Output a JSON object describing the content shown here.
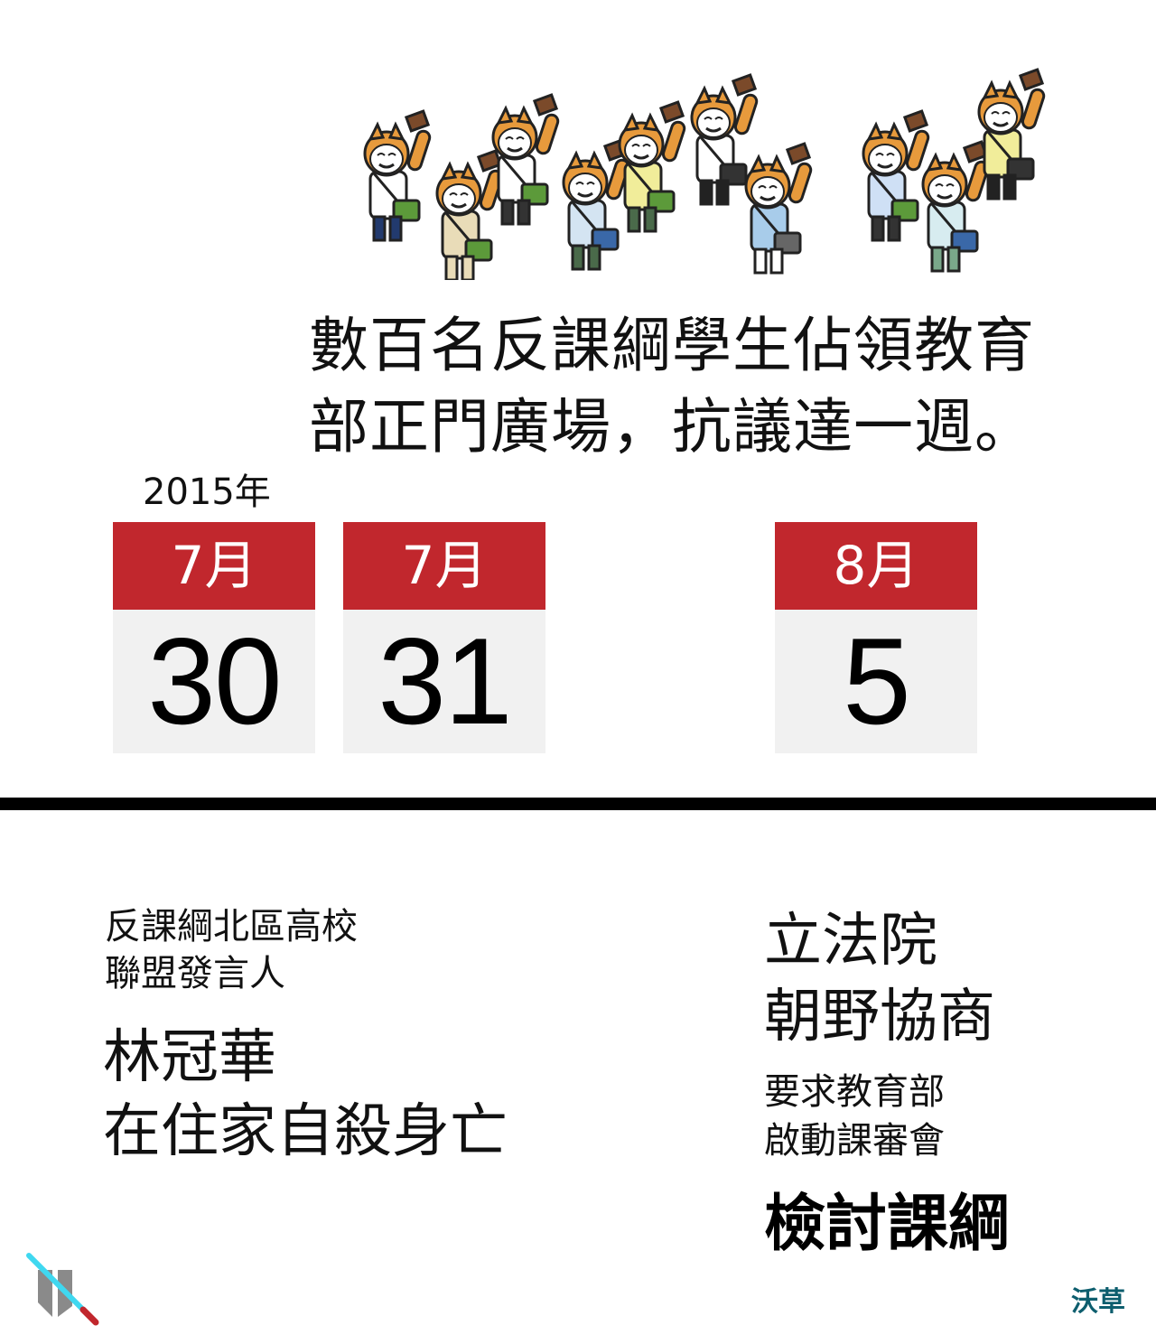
{
  "headline": {
    "line1": "數百名反課綱學生佔領教育",
    "line2": "部正門廣場，抗議達一週。"
  },
  "year_label": "2015年",
  "calendars": [
    {
      "month": "7月",
      "day": "30"
    },
    {
      "month": "7月",
      "day": "31"
    },
    {
      "month": "8月",
      "day": "5"
    }
  ],
  "left_block": {
    "role_line1": "反課綱北區高校",
    "role_line2": "聯盟發言人",
    "main_line1": "林冠華",
    "main_line2": "在住家自殺身亡"
  },
  "right_block": {
    "head_line1": "立法院",
    "head_line2": "朝野協商",
    "sub_line1": "要求教育部",
    "sub_line2": "啟動課審會",
    "bold_line": "檢討課綱"
  },
  "brand": "沃草",
  "colors": {
    "calendar_red": "#c1272d",
    "calendar_gray": "#f1f1f1",
    "brand_teal": "#0d5e6e"
  },
  "icons": [
    "protester-figure",
    "lightsaber-logo-icon"
  ]
}
